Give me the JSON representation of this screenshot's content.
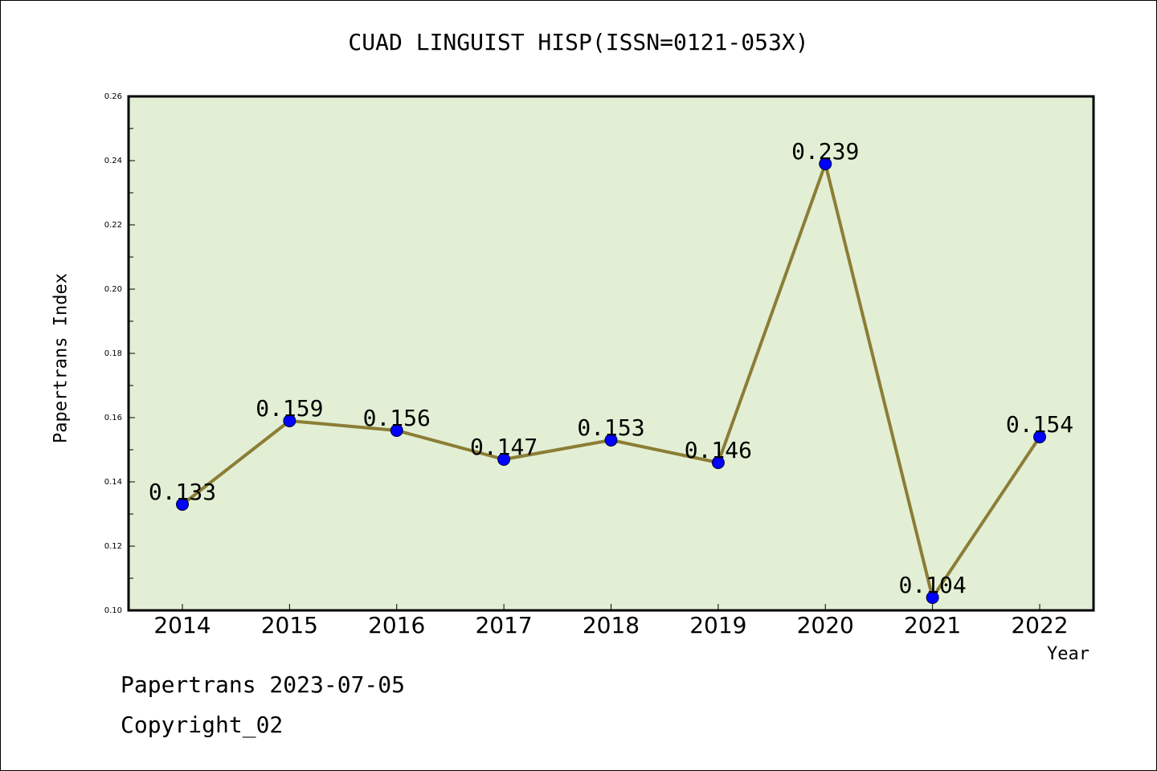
{
  "chart_data": {
    "type": "line",
    "title": "CUAD LINGUIST HISP(ISSN=0121-053X)",
    "xlabel": "Year",
    "ylabel": "Papertrans Index",
    "categories": [
      "2014",
      "2015",
      "2016",
      "2017",
      "2018",
      "2019",
      "2020",
      "2021",
      "2022"
    ],
    "series": [
      {
        "values": [
          0.133,
          0.159,
          0.156,
          0.147,
          0.153,
          0.146,
          0.239,
          0.104,
          0.154
        ],
        "labels": [
          "0.133",
          "0.159",
          "0.156",
          "0.147",
          "0.153",
          "0.146",
          "0.239",
          "0.104",
          "0.154"
        ]
      }
    ],
    "ylim": [
      0.1,
      0.26
    ],
    "yticks": [
      "0.10",
      "0.12",
      "0.14",
      "0.16",
      "0.18",
      "0.20",
      "0.22",
      "0.24",
      "0.26"
    ],
    "grid": false,
    "legend": "none",
    "colors": {
      "plot_background": "#e2efd4",
      "line": "#8b7d35",
      "marker": "#0000ff"
    }
  },
  "footer": {
    "line1": "Papertrans 2023-07-05",
    "line2": "Copyright_02"
  }
}
